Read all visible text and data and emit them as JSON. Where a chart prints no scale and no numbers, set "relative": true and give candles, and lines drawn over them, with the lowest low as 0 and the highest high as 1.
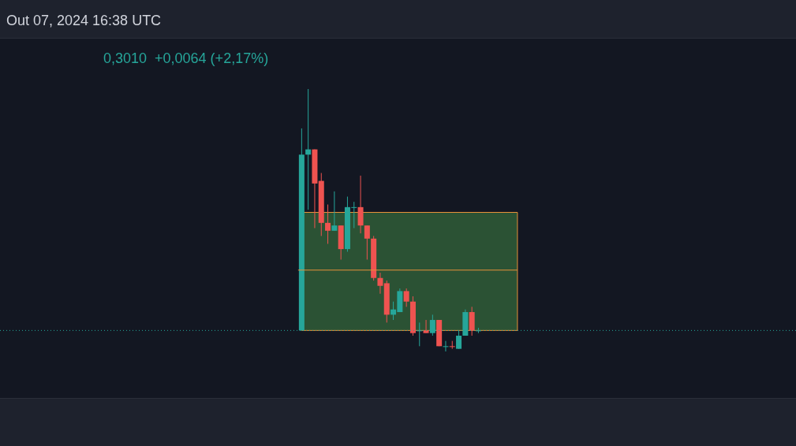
{
  "chart_data": {
    "type": "candlestick",
    "relative": true,
    "annotations": [
      "Out 07, 2024 16:38 UTC",
      "0,3010  +0,0064 (+2,17%)"
    ],
    "categories": [
      null,
      null,
      null,
      null,
      null,
      null,
      null,
      null,
      null,
      null,
      null,
      null,
      null,
      null,
      null,
      null,
      null,
      null,
      null,
      null,
      null,
      null,
      null,
      null,
      null,
      null,
      null,
      null
    ],
    "ohlc": [
      [
        0.08,
        0.85,
        0.08,
        0.75
      ],
      [
        0.75,
        1.0,
        0.54,
        0.77
      ],
      [
        0.77,
        0.77,
        0.47,
        0.64
      ],
      [
        0.65,
        0.68,
        0.44,
        0.49
      ],
      [
        0.49,
        0.56,
        0.41,
        0.46
      ],
      [
        0.46,
        0.61,
        0.46,
        0.48
      ],
      [
        0.48,
        0.48,
        0.35,
        0.39
      ],
      [
        0.39,
        0.59,
        0.38,
        0.55
      ],
      [
        0.55,
        0.57,
        0.47,
        0.55
      ],
      [
        0.55,
        0.67,
        0.45,
        0.48
      ],
      [
        0.48,
        0.48,
        0.35,
        0.43
      ],
      [
        0.43,
        0.44,
        0.27,
        0.28
      ],
      [
        0.28,
        0.3,
        0.22,
        0.25
      ],
      [
        0.26,
        0.27,
        0.11,
        0.14
      ],
      [
        0.14,
        0.19,
        0.12,
        0.16
      ],
      [
        0.15,
        0.24,
        0.15,
        0.23
      ],
      [
        0.23,
        0.24,
        0.17,
        0.19
      ],
      [
        0.19,
        0.21,
        0.06,
        0.07
      ],
      [
        0.08,
        0.11,
        0.02,
        0.08
      ],
      [
        0.08,
        0.12,
        0.07,
        0.07
      ],
      [
        0.07,
        0.14,
        0.06,
        0.12
      ],
      [
        0.12,
        0.12,
        0.02,
        0.02
      ],
      [
        0.02,
        0.04,
        0.0,
        0.02
      ],
      [
        0.02,
        0.04,
        0.01,
        0.02
      ],
      [
        0.01,
        0.08,
        0.01,
        0.06
      ],
      [
        0.06,
        0.16,
        0.06,
        0.15
      ],
      [
        0.15,
        0.17,
        0.06,
        0.08
      ],
      [
        0.08,
        0.09,
        0.07,
        0.08
      ]
    ],
    "colors": [
      "#26a69a",
      "#26a69a",
      "#ef5350",
      "#ef5350",
      "#ef5350",
      "#26a69a",
      "#ef5350",
      "#26a69a",
      "#26a69a",
      "#ef5350",
      "#ef5350",
      "#ef5350",
      "#ef5350",
      "#ef5350",
      "#26a69a",
      "#26a69a",
      "#ef5350",
      "#ef5350",
      "#26a69a",
      "#ef5350",
      "#26a69a",
      "#ef5350",
      "#26a69a",
      "#ef5350",
      "#26a69a",
      "#26a69a",
      "#ef5350",
      "#26a69a"
    ],
    "bands": [
      {
        "axis": "y",
        "from": 0.08,
        "to": 0.53,
        "color": "#2b5234"
      }
    ],
    "ref_lines": [
      {
        "axis": "y",
        "value": 0.31,
        "color": "#e8913a"
      },
      {
        "axis": "y",
        "value": 0.08,
        "color": "#26a69a",
        "line_style": "dotted"
      }
    ]
  }
}
